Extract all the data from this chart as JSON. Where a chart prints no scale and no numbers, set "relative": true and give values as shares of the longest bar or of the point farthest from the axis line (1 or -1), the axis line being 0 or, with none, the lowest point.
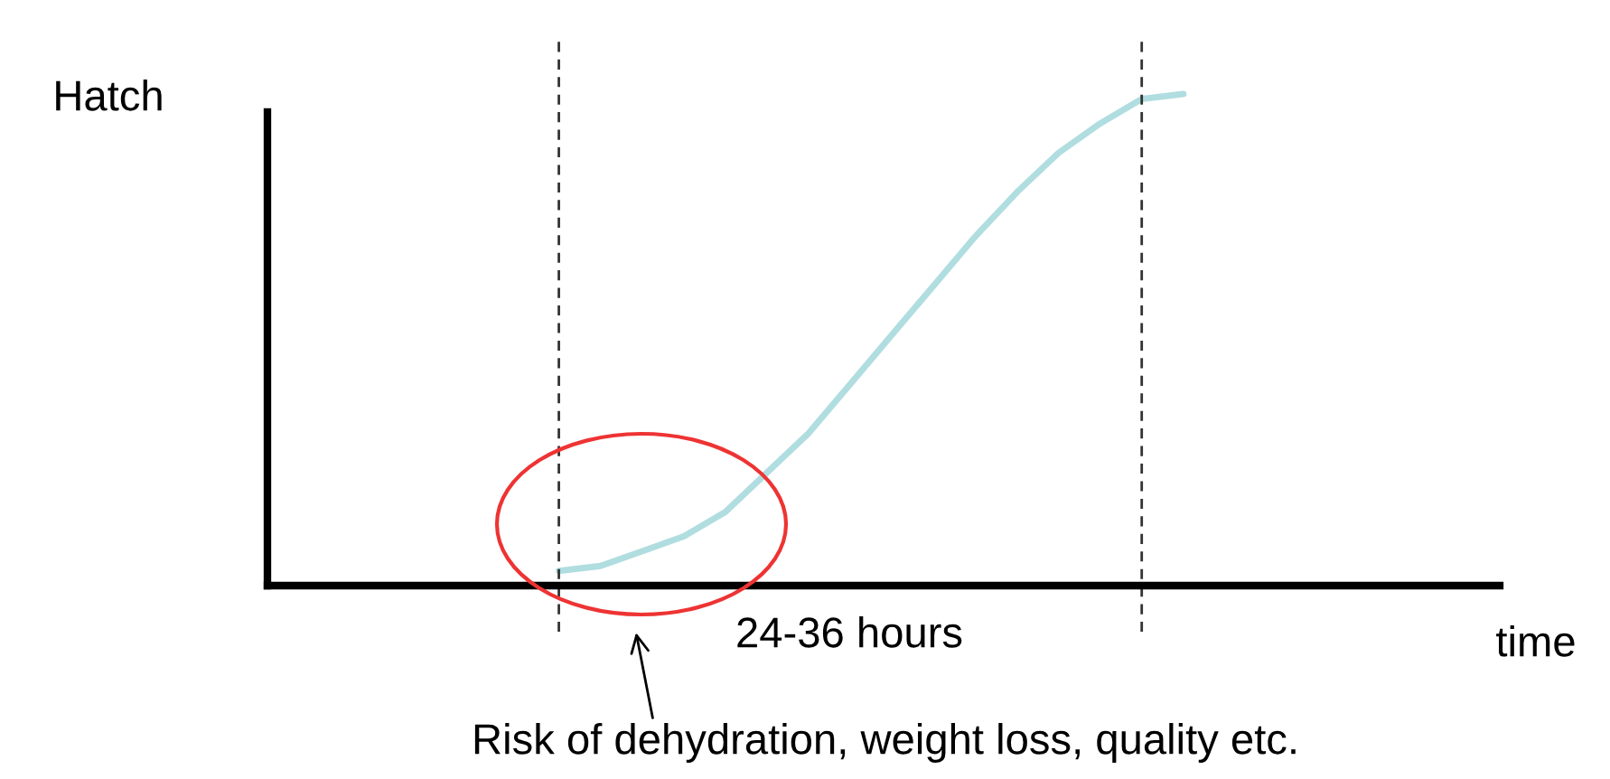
{
  "chart_data": {
    "type": "line",
    "relative": true,
    "categories": [
      null,
      null,
      null,
      null,
      null,
      null,
      null,
      null,
      null,
      null,
      null,
      null,
      null,
      null,
      null,
      null
    ],
    "series": [
      {
        "color": "#b0dde0",
        "values": [
          0.03,
          0.04,
          0.07,
          0.1,
          0.15,
          0.23,
          0.31,
          0.41,
          0.51,
          0.61,
          0.71,
          0.8,
          0.88,
          0.94,
          0.99,
          1.0
        ]
      }
    ],
    "annotations": [
      "Hatch",
      "time",
      "24-36 hours",
      "Risk of dehydration, weight loss, quality etc."
    ]
  }
}
